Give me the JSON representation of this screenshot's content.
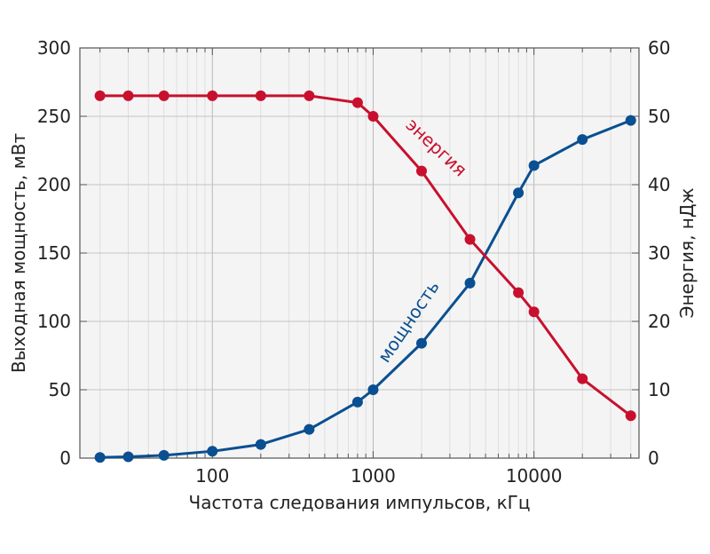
{
  "chart_data": {
    "type": "line",
    "xlabel": "Частота следования импульсов, кГц",
    "ylabel_left": "Выходная мощность, мВт",
    "ylabel_right": "Энергия, нДж",
    "xscale": "log",
    "xlim": [
      15,
      45000
    ],
    "ylim_left": [
      0,
      300
    ],
    "ylim_right": [
      0,
      60
    ],
    "x_ticks": [
      100,
      1000,
      10000
    ],
    "x_tick_labels": [
      "100",
      "1000",
      "10000"
    ],
    "y_left_ticks": [
      0,
      50,
      100,
      150,
      200,
      250,
      300
    ],
    "y_left_tick_labels": [
      "0",
      "50",
      "100",
      "150",
      "200",
      "250",
      "300"
    ],
    "y_right_ticks": [
      0,
      10,
      20,
      30,
      40,
      50,
      60
    ],
    "y_right_tick_labels": [
      "0",
      "10",
      "20",
      "30",
      "40",
      "50",
      "60"
    ],
    "grid": true,
    "series": [
      {
        "name": "мощность",
        "axis": "left",
        "color": "#0a4f91",
        "x": [
          20,
          30,
          50,
          100,
          200,
          400,
          800,
          1000,
          2000,
          4000,
          8000,
          10000,
          20000,
          40000
        ],
        "y": [
          0.5,
          1,
          2,
          5,
          10,
          21,
          41,
          50,
          84,
          128,
          194,
          214,
          233,
          247
        ]
      },
      {
        "name": "энергия",
        "axis": "right",
        "color": "#c8102e",
        "x": [
          20,
          30,
          50,
          100,
          200,
          400,
          800,
          1000,
          2000,
          4000,
          8000,
          10000,
          20000,
          40000
        ],
        "y": [
          53,
          53,
          53,
          53,
          53,
          53,
          52,
          50,
          42,
          32,
          24.2,
          21.4,
          11.6,
          6.2
        ]
      }
    ]
  }
}
